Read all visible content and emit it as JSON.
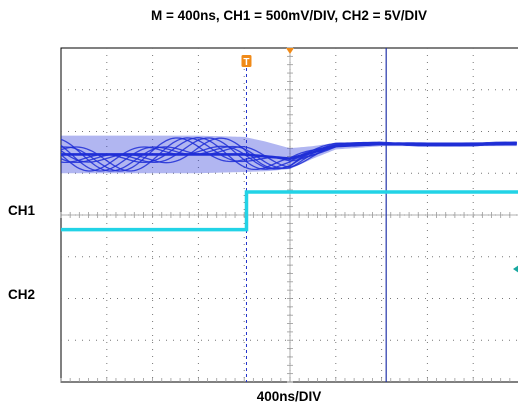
{
  "chart_data": {
    "type": "line",
    "title": "M = 400ns, CH1 = 500mV/DIV, CH2 = 5V/DIV",
    "xlabel": "400ns/DIV",
    "channel_labels": [
      "CH1",
      "CH2"
    ],
    "trigger_marker": "T",
    "grid": true,
    "x_divisions": 10,
    "y_divisions": 8,
    "units": {
      "time_per_div_ns": 400,
      "ch1_mV_per_div": 500,
      "ch2_V_per_div": 5
    },
    "series": [
      {
        "name": "CH1",
        "color": "#1f2ed6",
        "x_div": [
          0,
          1,
          2,
          3,
          4,
          4.5,
          5,
          5.5,
          6,
          7,
          8,
          9,
          10
        ],
        "y_div": [
          2.55,
          2.55,
          2.55,
          2.55,
          2.55,
          2.6,
          2.65,
          2.5,
          2.35,
          2.3,
          2.3,
          2.3,
          2.3
        ],
        "envelope_half_height_div": [
          0.45,
          0.45,
          0.45,
          0.45,
          0.42,
          0.35,
          0.25,
          0.15,
          0.08,
          0.05,
          0.05,
          0.05,
          0.05
        ]
      },
      {
        "name": "CH2",
        "color": "#22d3e6",
        "x_div": [
          0,
          4.05,
          4.05,
          10
        ],
        "y_div": [
          4.35,
          4.35,
          3.45,
          3.45
        ]
      }
    ],
    "trigger_time_div": 4.05,
    "cursor_time_div": 7.1
  }
}
